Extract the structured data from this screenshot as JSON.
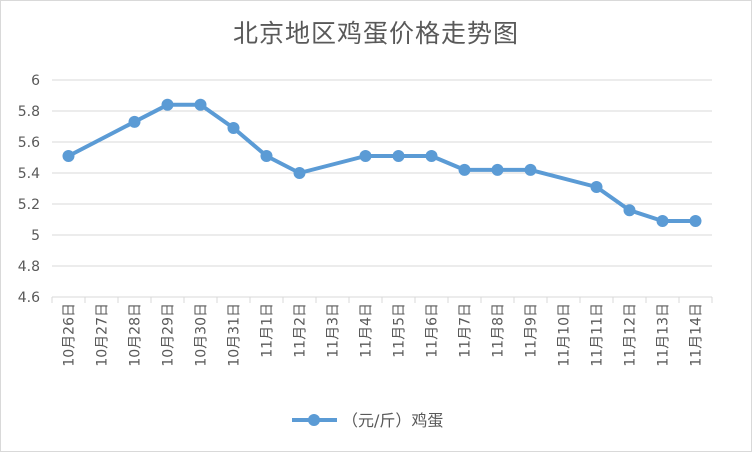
{
  "chart_data": {
    "type": "line",
    "title": "北京地区鸡蛋价格走势图",
    "xlabel": "",
    "ylabel": "",
    "categories": [
      "10月26日",
      "10月27日",
      "10月28日",
      "10月29日",
      "10月30日",
      "10月31日",
      "11月1日",
      "11月2日",
      "11月3日",
      "11月4日",
      "11月5日",
      "11月6日",
      "11月7日",
      "11月8日",
      "11月9日",
      "11月10日",
      "11月11日",
      "11月12日",
      "11月13日",
      "11月14日"
    ],
    "series": [
      {
        "name": "（元/斤）鸡蛋",
        "color": "#5b9bd5",
        "values": [
          5.51,
          null,
          5.73,
          5.84,
          5.84,
          5.69,
          5.51,
          5.4,
          null,
          5.51,
          5.51,
          5.51,
          5.42,
          5.42,
          5.42,
          null,
          5.31,
          5.16,
          5.09,
          5.09
        ]
      }
    ],
    "yticks": [
      "4.6",
      "4.8",
      "5",
      "5.2",
      "5.4",
      "5.6",
      "5.8",
      "6"
    ],
    "ylim": [
      4.6,
      6.0
    ],
    "grid": true,
    "legend_position": "bottom"
  }
}
